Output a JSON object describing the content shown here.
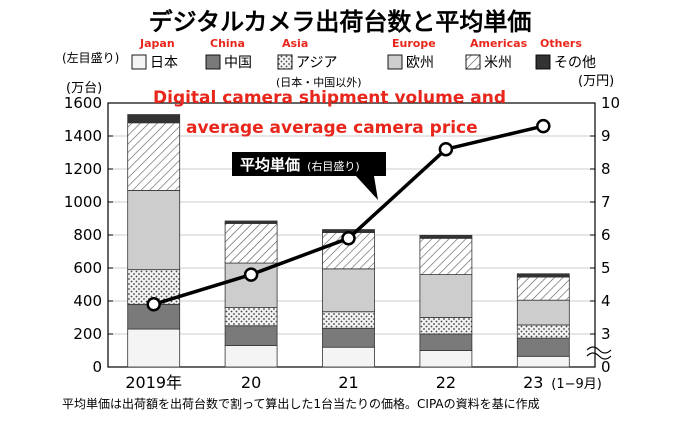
{
  "title": "デジタルカメラ出荷台数と平均単価",
  "title_en_line1": "Digital camera shipment volume and",
  "title_en_line2": "average average camera price",
  "left_axis_note": "(左目盛り)",
  "left_unit": "(万台)",
  "right_unit": "(万円)",
  "jp_china_note": "(日本・中国以外)",
  "price_label": "平均単価",
  "price_label_small": "(右目盛り)",
  "footnote": "平均単価は出荷額を出荷台数で割って算出した1台当たりの価格。CIPAの資料を基に作成",
  "legend": [
    {
      "jp": "日本",
      "en": "Japan",
      "pattern": "light"
    },
    {
      "jp": "中国",
      "en": "China",
      "pattern": "dark"
    },
    {
      "jp": "アジア",
      "en": "Asia",
      "pattern": "dots"
    },
    {
      "jp": "欧州",
      "en": "Europe",
      "pattern": "mid"
    },
    {
      "jp": "米州",
      "en": "Americas",
      "pattern": "hatch"
    },
    {
      "jp": "その他",
      "en": "Others",
      "pattern": "black"
    }
  ],
  "colors": {
    "annotation_red": "#e8261c",
    "bar_stroke": "#333333"
  },
  "chart_data": {
    "type": "bar",
    "stacked": true,
    "categories": [
      "2019年",
      "20",
      "21",
      "22",
      "23"
    ],
    "category_suffix_last": "(1−9月)",
    "series": [
      {
        "name": "日本",
        "values": [
          230,
          130,
          120,
          100,
          65
        ]
      },
      {
        "name": "中国",
        "values": [
          150,
          120,
          115,
          100,
          110
        ]
      },
      {
        "name": "アジア",
        "values": [
          210,
          110,
          100,
          100,
          80
        ]
      },
      {
        "name": "欧州",
        "values": [
          480,
          270,
          260,
          260,
          150
        ]
      },
      {
        "name": "米州",
        "values": [
          410,
          240,
          220,
          220,
          140
        ]
      },
      {
        "name": "その他",
        "values": [
          50,
          15,
          18,
          18,
          20
        ]
      }
    ],
    "line": {
      "name": "平均単価",
      "axis": "right",
      "values": [
        3.9,
        4.8,
        5.9,
        8.6,
        9.3
      ]
    },
    "ylim": [
      0,
      1600
    ],
    "yticks": [
      "0",
      "200",
      "400",
      "600",
      "800",
      "1000",
      "1200",
      "1400",
      "1600"
    ],
    "y2lim": [
      0,
      10
    ],
    "y2ticks": [
      "0",
      "3",
      "4",
      "5",
      "6",
      "7",
      "8",
      "9",
      "10"
    ],
    "y2_break_between": [
      0,
      3
    ]
  }
}
